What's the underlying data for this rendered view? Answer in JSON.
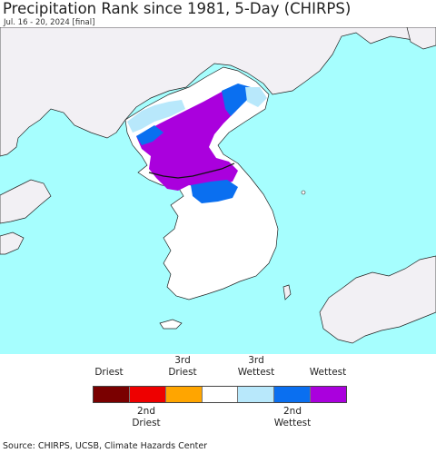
{
  "header": {
    "title": "Precipitation Rank since 1981, 5-Day (CHIRPS)",
    "subtitle": "Jul. 16 - 20, 2024 [final]"
  },
  "legend": {
    "top_labels": [
      "Driest",
      "3rd\nDriest",
      "3rd\nWettest",
      "Wettest"
    ],
    "bottom_labels": [
      "2nd\nDriest",
      "2nd\nWettest"
    ],
    "colors": [
      "#7a0000",
      "#ee0000",
      "#ffa500",
      "#ffffff",
      "#b8e8fb",
      "#0a6ff0",
      "#aa00dd"
    ]
  },
  "footer": {
    "source": "Source: CHIRPS, UCSB, Climate Hazards Center"
  },
  "map_colors": {
    "sea": "#a6fefe",
    "land": "#ffffff",
    "foreign_land": "#f2f0f4"
  }
}
